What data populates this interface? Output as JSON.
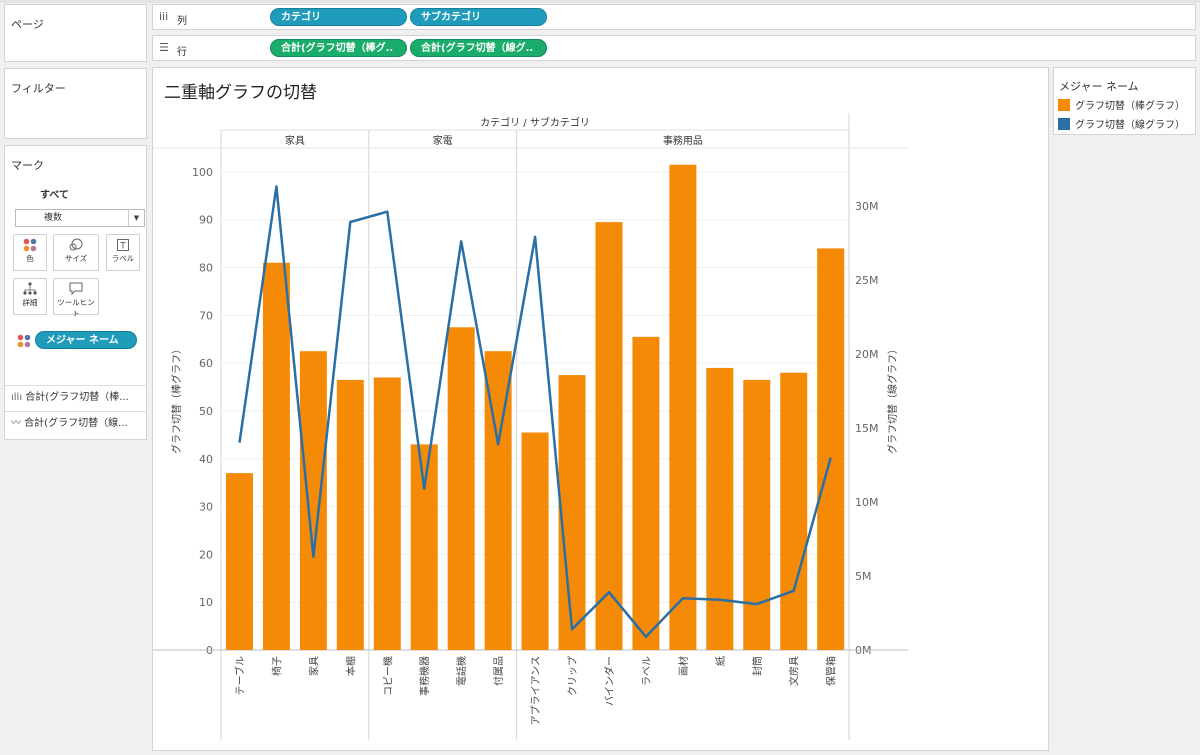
{
  "pages": {
    "title": "ページ"
  },
  "filters": {
    "title": "フィルター"
  },
  "columns_shelf": {
    "label": "列",
    "icon": "columns-icon",
    "pills": [
      "カテゴリ",
      "サブカテゴリ"
    ]
  },
  "rows_shelf": {
    "label": "行",
    "icon": "rows-icon",
    "pills": [
      "合計(グラフ切替（棒グ..",
      "合計(グラフ切替（線グ.."
    ]
  },
  "marks": {
    "title": "マーク",
    "all_label": "すべて",
    "mark_type": "複数",
    "buttons": {
      "color": "色",
      "size": "サイズ",
      "label": "ラベル",
      "detail": "詳細",
      "tooltip": "ツールヒント"
    },
    "color_pill": "メジャー ネーム",
    "measures": [
      "合計(グラフ切替（棒...",
      "合計(グラフ切替（線..."
    ]
  },
  "legend": {
    "title": "メジャー ネーム",
    "items": [
      {
        "label": "グラフ切替（棒グラフ）",
        "color": "#f58a07"
      },
      {
        "label": "グラフ切替（線グラフ）",
        "color": "#2a6fa5"
      }
    ]
  },
  "chart_data": {
    "type": "bar",
    "title": "二重軸グラフの切替",
    "header": "カテゴリ / サブカテゴリ",
    "groups": [
      {
        "name": "家具",
        "categories": [
          "テーブル",
          "椅子",
          "家具",
          "本棚"
        ]
      },
      {
        "name": "家電",
        "categories": [
          "コピー機",
          "事務機器",
          "電話機",
          "付属品"
        ]
      },
      {
        "name": "事務用品",
        "categories": [
          "アプライアンス",
          "クリップ",
          "バインダー",
          "ラベル",
          "画材",
          "紙",
          "封筒",
          "文房具",
          "保管箱"
        ]
      }
    ],
    "categories": [
      "テーブル",
      "椅子",
      "家具",
      "本棚",
      "コピー機",
      "事務機器",
      "電話機",
      "付属品",
      "アプライアンス",
      "クリップ",
      "バインダー",
      "ラベル",
      "画材",
      "紙",
      "封筒",
      "文房具",
      "保管箱"
    ],
    "series": [
      {
        "name": "グラフ切替（棒グラフ）",
        "type": "bar",
        "axis": "left",
        "color": "#f58a07",
        "values": [
          37,
          81,
          62.5,
          56.5,
          57,
          43,
          67.5,
          62.5,
          45.5,
          57.5,
          89.5,
          65.5,
          101.5,
          59,
          56.5,
          58,
          84
        ]
      },
      {
        "name": "グラフ切替（線グラフ）",
        "type": "line",
        "axis": "right",
        "color": "#2a6fa5",
        "values": [
          14,
          31.3,
          6.3,
          28.9,
          29.6,
          10.9,
          27.6,
          13.9,
          27.9,
          1.4,
          3.9,
          0.9,
          3.5,
          3.4,
          3.1,
          4,
          13
        ]
      }
    ],
    "y_left": {
      "label": "グラフ切替（棒グラフ）",
      "ticks": [
        "0",
        "10",
        "20",
        "30",
        "40",
        "50",
        "60",
        "70",
        "80",
        "90",
        "100"
      ],
      "range": [
        0,
        105
      ]
    },
    "y_right": {
      "label": "グラフ切替（線グラフ）",
      "ticks": [
        "0M",
        "5M",
        "10M",
        "15M",
        "20M",
        "25M",
        "30M"
      ],
      "tick_values": [
        0,
        5,
        10,
        15,
        20,
        25,
        30
      ],
      "range": [
        0,
        33.9
      ]
    },
    "gridlines": true
  }
}
